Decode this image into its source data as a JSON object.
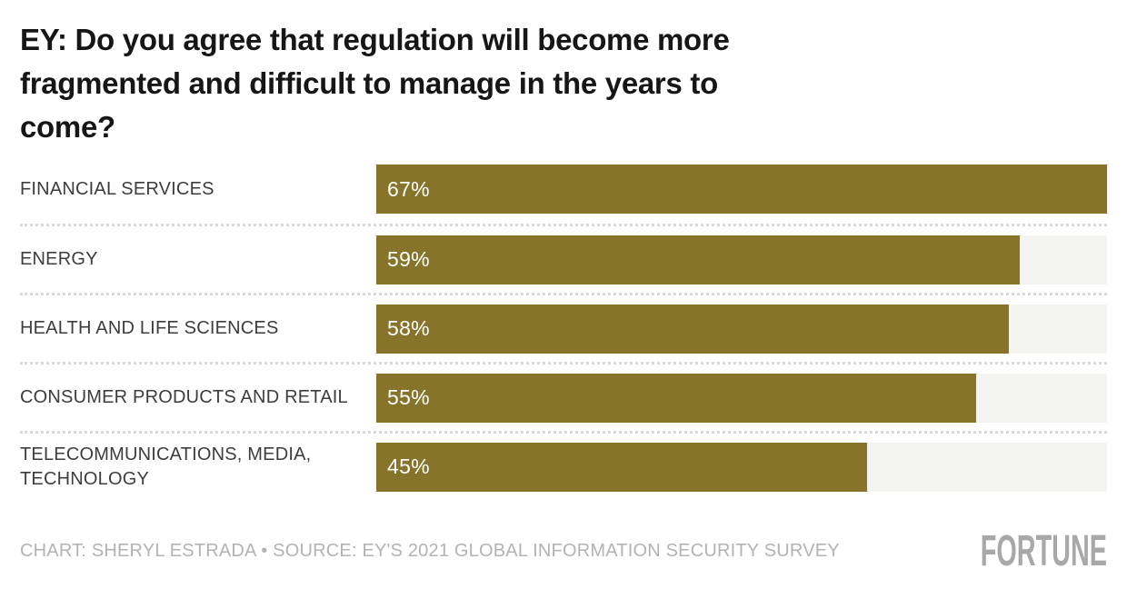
{
  "title_display": "EY: Do you agree that regulation will become more\nfragmented and difficult to manage in the years to\ncome?",
  "chart_data": {
    "type": "bar",
    "orientation": "horizontal",
    "title": "EY: Do you agree that regulation will become more fragmented and difficult to manage in the years to come?",
    "categories": [
      "FINANCIAL SERVICES",
      "ENERGY",
      "HEALTH AND LIFE SCIENCES",
      "CONSUMER PRODUCTS AND RETAIL",
      "TELECOMMUNICATIONS, MEDIA,\nTECHNOLOGY"
    ],
    "values": [
      67,
      59,
      58,
      55,
      45
    ],
    "value_labels": [
      "67%",
      "59%",
      "58%",
      "55%",
      "45%"
    ],
    "unit": "%",
    "xlim": [
      0,
      67
    ],
    "bar_scale_note": "bars scaled so the max value (67%) fills the full track width",
    "grid": false,
    "legend": false,
    "bar_color": "#87742b",
    "track_color": "#f3f3f1",
    "separator_color": "#d9d9d9",
    "value_label_color": "#ffffff",
    "category_label_color": "#3d3d3d",
    "title_color": "#161616"
  },
  "footer": {
    "credit": "CHART: SHERYL ESTRADA • SOURCE: EY'S 2021 GLOBAL INFORMATION SECURITY SURVEY",
    "logo_text": "FORTUNE",
    "credit_color": "#b3b3b3",
    "logo_color": "#a8a8a8"
  }
}
